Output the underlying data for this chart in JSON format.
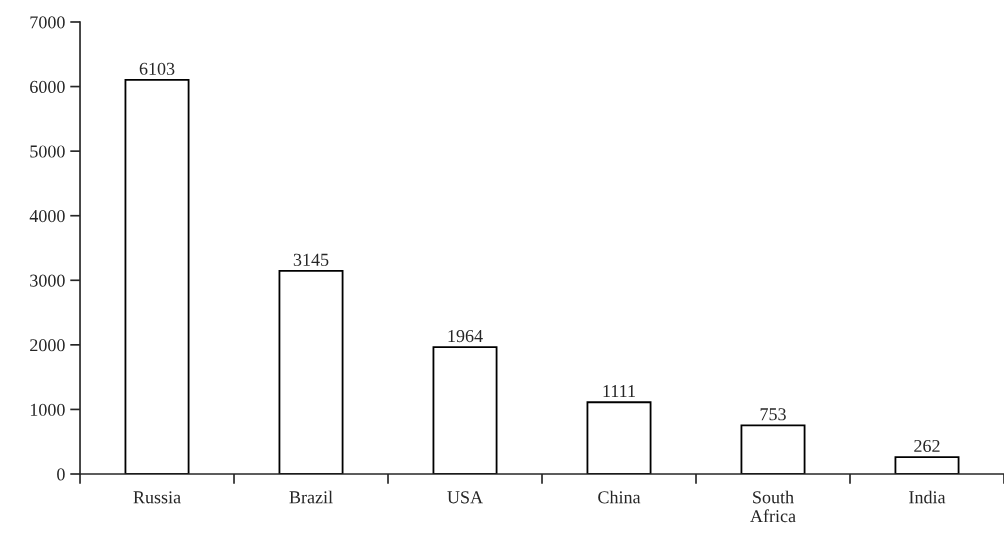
{
  "chart_data": {
    "type": "bar",
    "categories": [
      "Russia",
      "Brazil",
      "USA",
      "China",
      "South Africa",
      "India"
    ],
    "values": [
      6103,
      3145,
      1964,
      1111,
      753,
      262
    ],
    "color": "#ffffff",
    "ylim": [
      0,
      7000
    ],
    "yticks": [
      0,
      1000,
      2000,
      3000,
      4000,
      5000,
      6000,
      7000
    ],
    "data_labels": true,
    "grid": false,
    "legend": false
  }
}
